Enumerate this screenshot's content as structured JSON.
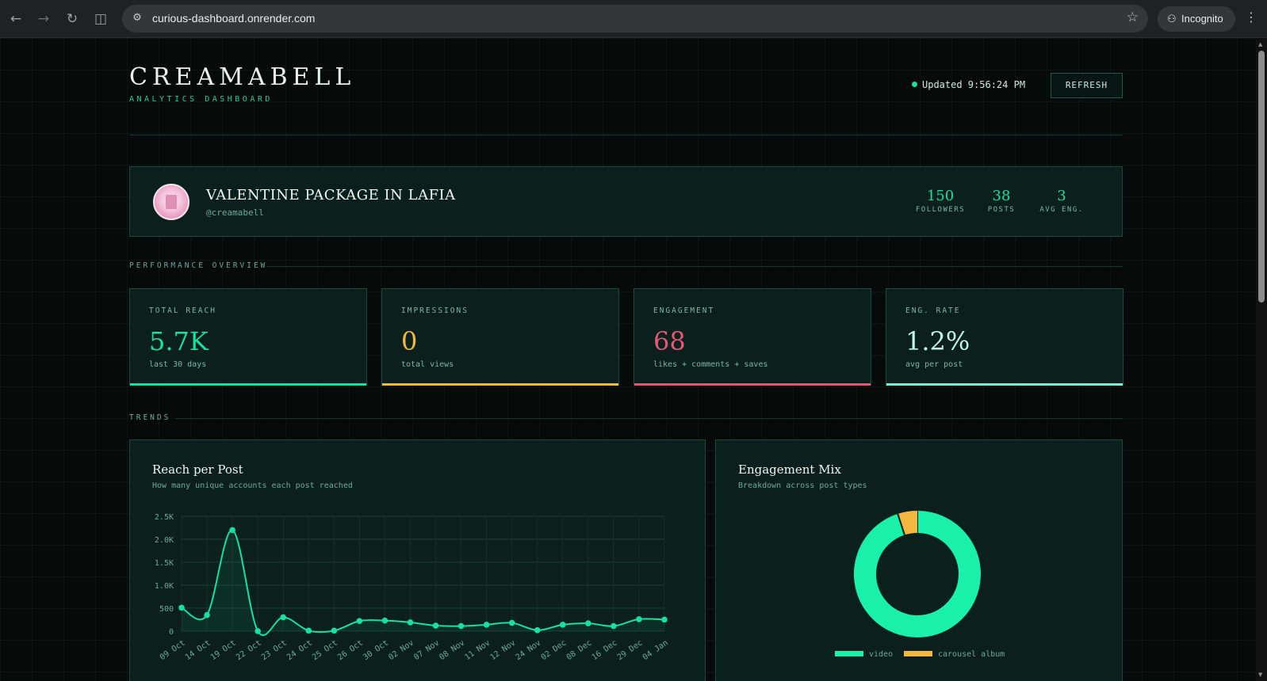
{
  "browser": {
    "url": "curious-dashboard.onrender.com",
    "profile_label": "Incognito"
  },
  "header": {
    "brand": "CREAMABELL",
    "subtitle": "ANALYTICS DASHBOARD",
    "updated_text": "Updated 9:56:24 PM",
    "refresh_label": "REFRESH"
  },
  "profile": {
    "name": "VALENTINE PACKAGE IN LAFIA",
    "handle": "@creamabell",
    "stats": [
      {
        "value": "150",
        "label": "FOLLOWERS"
      },
      {
        "value": "38",
        "label": "POSTS"
      },
      {
        "value": "3",
        "label": "AVG ENG."
      }
    ]
  },
  "sections": {
    "performance": "PERFORMANCE OVERVIEW",
    "trends": "TRENDS"
  },
  "kpis": [
    {
      "label": "TOTAL REACH",
      "value": "5.7K",
      "sub": "last 30 days",
      "color": "#19e09f"
    },
    {
      "label": "IMPRESSIONS",
      "value": "0",
      "sub": "total views",
      "color": "#f4b740"
    },
    {
      "label": "ENGAGEMENT",
      "value": "68",
      "sub": "likes + comments + saves",
      "color": "#e05a78"
    },
    {
      "label": "ENG. RATE",
      "value": "1.2%",
      "sub": "avg per post",
      "color": "#7ff0cf"
    }
  ],
  "reach_card": {
    "title": "Reach per Post",
    "subtitle": "How many unique accounts each post reached"
  },
  "mix_card": {
    "title": "Engagement Mix",
    "subtitle": "Breakdown across post types"
  },
  "chart_data": [
    {
      "type": "line",
      "ylim": [
        0,
        2500
      ],
      "yticks": [
        "0",
        "500",
        "1.0K",
        "1.5K",
        "2.0K",
        "2.5K"
      ],
      "ytick_values": [
        0,
        500,
        1000,
        1500,
        2000,
        2500
      ],
      "x": [
        "09 Oct",
        "14 Oct",
        "19 Oct",
        "22 Oct",
        "23 Oct",
        "24 Oct",
        "25 Oct",
        "26 Oct",
        "30 Oct",
        "02 Nov",
        "07 Nov",
        "08 Nov",
        "11 Nov",
        "12 Nov",
        "24 Nov",
        "02 Dec",
        "08 Dec",
        "16 Dec",
        "29 Dec",
        "04 Jan"
      ],
      "series": [
        {
          "values": [
            510,
            350,
            2200,
            0,
            300,
            10,
            10,
            220,
            230,
            190,
            120,
            110,
            140,
            180,
            20,
            140,
            170,
            110,
            260,
            250
          ],
          "color": "#19e09f"
        }
      ]
    },
    {
      "type": "pie",
      "categories": [
        "video",
        "carousel album"
      ],
      "values": [
        95,
        5
      ],
      "colors": [
        "#19f0a8",
        "#f4b740"
      ]
    }
  ]
}
